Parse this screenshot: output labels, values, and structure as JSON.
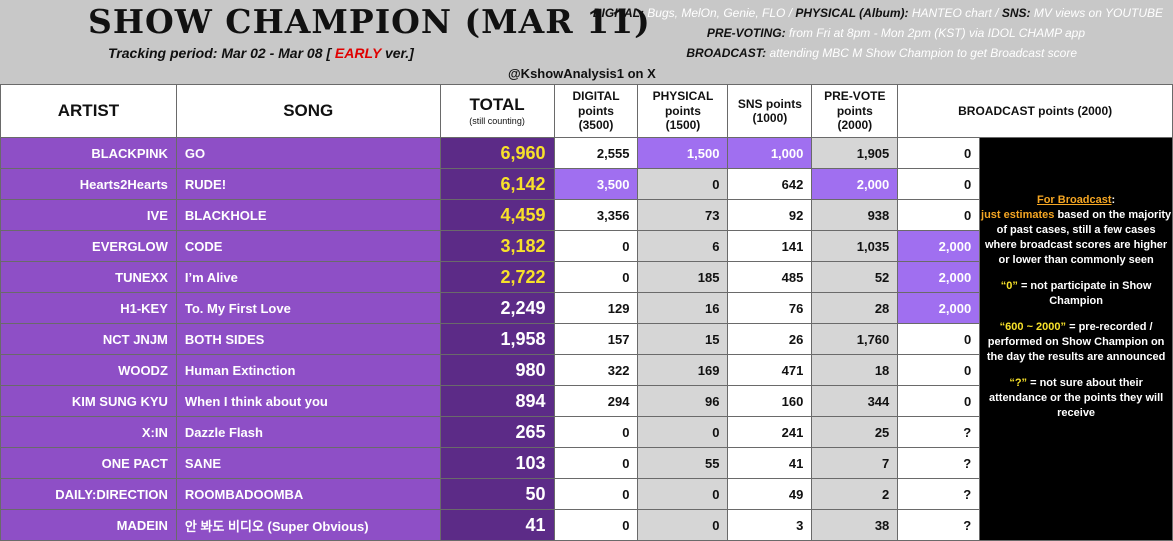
{
  "header": {
    "title": "SHOW CHAMPION (MAR 11)",
    "period_prefix": "Tracking period: Mar 02 - Mar 08 [ ",
    "period_early": "EARLY",
    "period_suffix": " ver.]",
    "handle": "@KshowAnalysis1 on X",
    "info": [
      {
        "label": "DIGITAL:",
        "value": " Bugs, MelOn, Genie, FLO / ",
        "label2": "PHYSICAL (Album):",
        "value2": " HANTEO chart / ",
        "label3": "SNS:",
        "value3": " MV views on YOUTUBE"
      },
      {
        "label": "PRE-VOTING:",
        "value": " from Fri at 8pm - Mon 2pm (KST) via IDOL CHAMP app"
      },
      {
        "label": "BROADCAST:",
        "value": " attending MBC M Show Champion to get Broadcast score"
      }
    ]
  },
  "columns": {
    "artist": "ARTIST",
    "song": "SONG",
    "total": "TOTAL",
    "total_sub": "(still counting)",
    "digital": [
      "DIGITAL",
      "points",
      "(3500)"
    ],
    "physical": [
      "PHYSICAL",
      "points",
      "(1500)"
    ],
    "sns": [
      "SNS points",
      "(1000)"
    ],
    "prevote": [
      "PRE-VOTE",
      "points",
      "(2000)"
    ],
    "broadcast": "BROADCAST points (2000)"
  },
  "rows": [
    {
      "artist": "BLACKPINK",
      "song": "GO",
      "total": "6,960",
      "digital": "2,555",
      "physical": "1,500",
      "sns": "1,000",
      "prevote": "1,905",
      "broadcast": "0",
      "gold": true,
      "hl": [
        "physical",
        "sns"
      ]
    },
    {
      "artist": "Hearts2Hearts",
      "song": "RUDE!",
      "total": "6,142",
      "digital": "3,500",
      "physical": "0",
      "sns": "642",
      "prevote": "2,000",
      "broadcast": "0",
      "gold": true,
      "hl": [
        "digital",
        "prevote"
      ]
    },
    {
      "artist": "IVE",
      "song": "BLACKHOLE",
      "total": "4,459",
      "digital": "3,356",
      "physical": "73",
      "sns": "92",
      "prevote": "938",
      "broadcast": "0",
      "gold": true,
      "hl": []
    },
    {
      "artist": "EVERGLOW",
      "song": "CODE",
      "total": "3,182",
      "digital": "0",
      "physical": "6",
      "sns": "141",
      "prevote": "1,035",
      "broadcast": "2,000",
      "gold": true,
      "hl": [
        "broadcast"
      ]
    },
    {
      "artist": "TUNEXX",
      "song": "I’m Alive",
      "total": "2,722",
      "digital": "0",
      "physical": "185",
      "sns": "485",
      "prevote": "52",
      "broadcast": "2,000",
      "gold": true,
      "hl": [
        "broadcast"
      ]
    },
    {
      "artist": "H1-KEY",
      "song": "To. My First Love",
      "total": "2,249",
      "digital": "129",
      "physical": "16",
      "sns": "76",
      "prevote": "28",
      "broadcast": "2,000",
      "gold": false,
      "hl": [
        "broadcast"
      ]
    },
    {
      "artist": "NCT JNJM",
      "song": "BOTH SIDES",
      "total": "1,958",
      "digital": "157",
      "physical": "15",
      "sns": "26",
      "prevote": "1,760",
      "broadcast": "0",
      "gold": false,
      "hl": []
    },
    {
      "artist": "WOODZ",
      "song": "Human Extinction",
      "total": "980",
      "digital": "322",
      "physical": "169",
      "sns": "471",
      "prevote": "18",
      "broadcast": "0",
      "gold": false,
      "hl": []
    },
    {
      "artist": "KIM SUNG KYU",
      "song": "When I think about you",
      "total": "894",
      "digital": "294",
      "physical": "96",
      "sns": "160",
      "prevote": "344",
      "broadcast": "0",
      "gold": false,
      "hl": []
    },
    {
      "artist": "X:IN",
      "song": "Dazzle Flash",
      "total": "265",
      "digital": "0",
      "physical": "0",
      "sns": "241",
      "prevote": "25",
      "broadcast": "?",
      "gold": false,
      "hl": []
    },
    {
      "artist": "ONE PACT",
      "song": "SANE",
      "total": "103",
      "digital": "0",
      "physical": "55",
      "sns": "41",
      "prevote": "7",
      "broadcast": "?",
      "gold": false,
      "hl": []
    },
    {
      "artist": "DAILY:DIRECTION",
      "song": "ROOMBADOOMBA",
      "total": "50",
      "digital": "0",
      "physical": "0",
      "sns": "49",
      "prevote": "2",
      "broadcast": "?",
      "gold": false,
      "hl": []
    },
    {
      "artist": "MADEIN",
      "song": "안 봐도 비디오 (Super Obvious)",
      "total": "41",
      "digital": "0",
      "physical": "0",
      "sns": "3",
      "prevote": "38",
      "broadcast": "?",
      "gold": false,
      "hl": []
    }
  ],
  "notes": {
    "heading": "For Broadcast",
    "heading_colon": ":",
    "est_hl": "just estimates",
    "est_rest": " based on the majority of past cases, still a few cases where broadcast scores are higher or lower than commonly seen",
    "zero_hl": "“0”",
    "zero_rest": " = not participate in Show Champion",
    "range_hl": "“600 ~ 2000”",
    "range_rest": " = pre-recorded / performed on Show Champion on the day the results are announced",
    "q_hl": "“?”",
    "q_rest": " = not sure about their attendance or the points they will receive"
  },
  "colors": {
    "purple": "#8e4fc6",
    "dark_purple": "#5c2b87",
    "highlight": "#a06ff0",
    "gold": "#f7e12a",
    "early": "#e00000"
  }
}
